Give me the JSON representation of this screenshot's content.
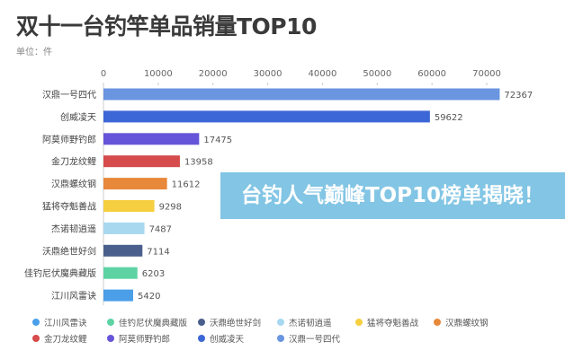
{
  "banner": {
    "text": "台钓人气巅峰TOP10榜单揭晓！",
    "color": "#6ebce0"
  },
  "chart_data": {
    "type": "bar",
    "orientation": "horizontal",
    "title": "双十一台钓竿单品销量TOP10",
    "subtitle": "单位：件",
    "categories": [
      "汉鼎一号四代",
      "创威凌天",
      "阿莫师野钓郎",
      "金刀龙纹鲤",
      "汉鼎螺纹钢",
      "猛将夺魁善战",
      "杰诺韧逍遥",
      "沃鼎绝世好剑",
      "佳钓尼伏魔典藏版",
      "江川风雷诀"
    ],
    "values": [
      72367,
      59622,
      17475,
      13958,
      11612,
      9298,
      7487,
      7114,
      6203,
      5420
    ],
    "colors": [
      "#6a95e0",
      "#3d66d6",
      "#6655d8",
      "#d64b4b",
      "#e8883a",
      "#f5cf3f",
      "#a8d8f0",
      "#4a5f8c",
      "#5dd3a4",
      "#4a9fe8"
    ],
    "xlim": [
      0,
      70000
    ],
    "xticks": [
      "0",
      "10000",
      "20000",
      "30000",
      "40000",
      "50000",
      "60000",
      "70000"
    ],
    "grid": false,
    "legend_position": "bottom",
    "legend": [
      "江川风雷诀",
      "佳钓尼伏魔典藏版",
      "沃鼎绝世好剑",
      "杰诺韧逍遥",
      "猛将夺魁善战",
      "汉鼎螺纹钢",
      "金刀龙纹鲤",
      "阿莫师野钓郎",
      "创威凌天",
      "汉鼎一号四代"
    ]
  }
}
